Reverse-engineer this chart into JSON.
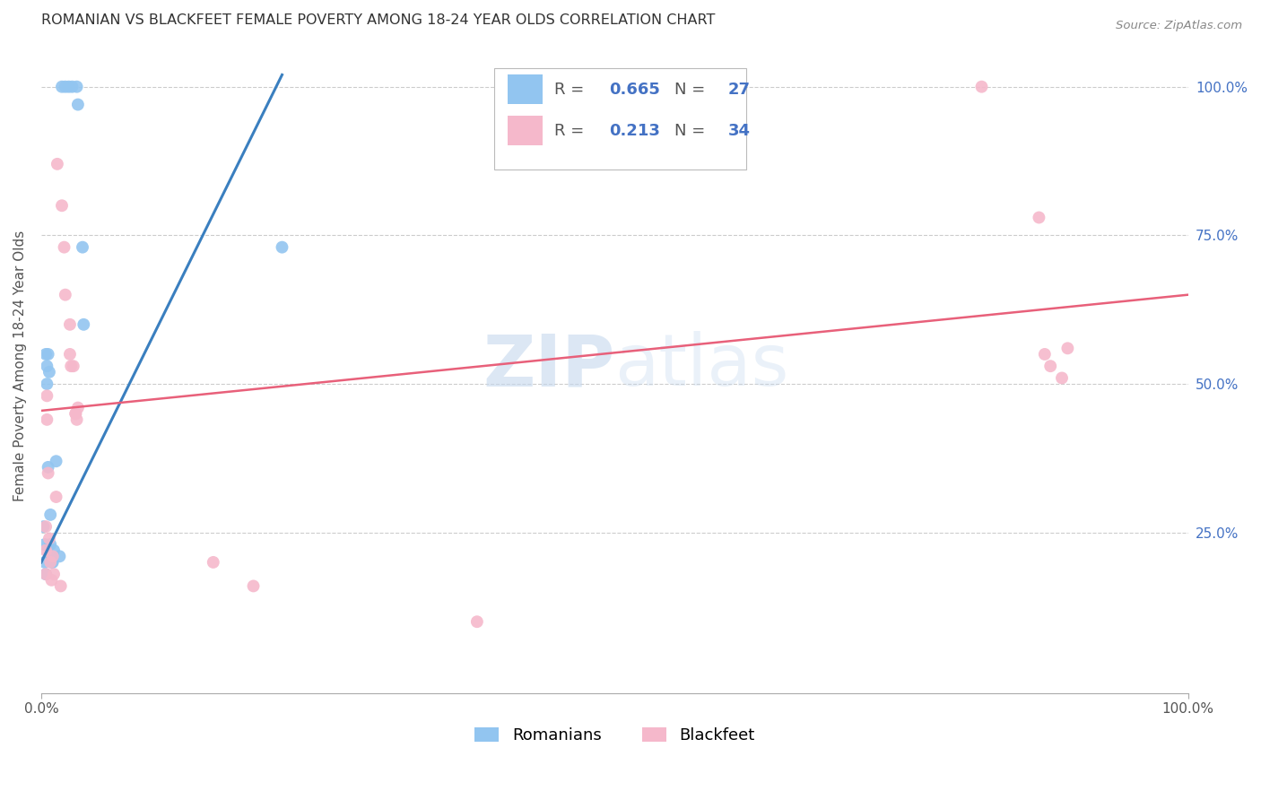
{
  "title": "ROMANIAN VS BLACKFEET FEMALE POVERTY AMONG 18-24 YEAR OLDS CORRELATION CHART",
  "source": "Source: ZipAtlas.com",
  "ylabel": "Female Poverty Among 18-24 Year Olds",
  "legend_label_blue": "Romanians",
  "legend_label_pink": "Blackfeet",
  "blue_color": "#92C5F0",
  "pink_color": "#F5B8CB",
  "blue_line_color": "#3A7FBF",
  "pink_line_color": "#E8607A",
  "romanians_x": [
    0.018,
    0.021,
    0.024,
    0.027,
    0.031,
    0.032,
    0.036,
    0.037,
    0.002,
    0.003,
    0.003,
    0.004,
    0.004,
    0.005,
    0.005,
    0.006,
    0.006,
    0.007,
    0.008,
    0.008,
    0.009,
    0.009,
    0.01,
    0.011,
    0.013,
    0.016,
    0.21
  ],
  "romanians_y": [
    1.0,
    1.0,
    1.0,
    1.0,
    1.0,
    0.97,
    0.73,
    0.6,
    0.26,
    0.23,
    0.2,
    0.18,
    0.55,
    0.53,
    0.5,
    0.36,
    0.55,
    0.52,
    0.28,
    0.23,
    0.21,
    0.2,
    0.2,
    0.22,
    0.37,
    0.21,
    0.73
  ],
  "blackfeet_x": [
    0.004,
    0.004,
    0.004,
    0.005,
    0.005,
    0.006,
    0.007,
    0.008,
    0.009,
    0.01,
    0.011,
    0.013,
    0.017,
    0.02,
    0.021,
    0.025,
    0.026,
    0.03,
    0.031,
    0.032,
    0.15,
    0.185,
    0.38,
    0.82,
    0.87,
    0.875,
    0.88,
    0.89,
    0.895,
    0.025,
    0.028,
    0.03,
    0.014,
    0.018
  ],
  "blackfeet_y": [
    0.26,
    0.22,
    0.18,
    0.48,
    0.44,
    0.35,
    0.24,
    0.2,
    0.17,
    0.21,
    0.18,
    0.31,
    0.16,
    0.73,
    0.65,
    0.6,
    0.53,
    0.45,
    0.44,
    0.46,
    0.2,
    0.16,
    0.1,
    1.0,
    0.78,
    0.55,
    0.53,
    0.51,
    0.56,
    0.55,
    0.53,
    0.45,
    0.87,
    0.8
  ],
  "blue_trend_x": [
    0.0,
    0.21
  ],
  "blue_trend_y": [
    0.2,
    1.02
  ],
  "pink_trend_x": [
    0.0,
    1.0
  ],
  "pink_trend_y": [
    0.455,
    0.65
  ],
  "xlim": [
    0,
    1
  ],
  "ylim": [
    -0.02,
    1.08
  ],
  "ytick_positions": [
    0.25,
    0.5,
    0.75,
    1.0
  ],
  "ytick_labels": [
    "25.0%",
    "50.0%",
    "75.0%",
    "100.0%"
  ],
  "xtick_positions": [
    0,
    1
  ],
  "xtick_labels": [
    "0.0%",
    "100.0%"
  ],
  "title_fontsize": 11.5,
  "source_fontsize": 9.5,
  "axis_label_fontsize": 11,
  "tick_fontsize": 11,
  "legend_fontsize": 13,
  "marker_size": 100,
  "background_color": "#ffffff",
  "grid_color": "#cccccc"
}
